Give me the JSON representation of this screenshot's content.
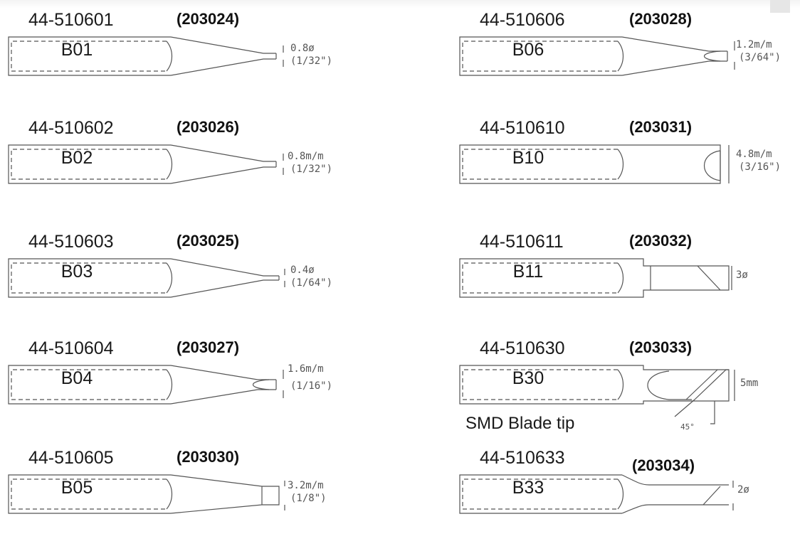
{
  "tips": [
    {
      "id": "b01",
      "part_number": "44-510601",
      "code": "(203024)",
      "model": "B01",
      "shape": "conical",
      "dim_top": "0.8ø",
      "dim_bottom": "(1/32\")"
    },
    {
      "id": "b02",
      "part_number": "44-510602",
      "code": "(203026)",
      "model": "B02",
      "shape": "conical",
      "dim_top": "0.8m/m",
      "dim_bottom": "(1/32\")"
    },
    {
      "id": "b03",
      "part_number": "44-510603",
      "code": "(203025)",
      "model": "B03",
      "shape": "conical-fine",
      "dim_top": "0.4ø",
      "dim_bottom": "(1/64\")"
    },
    {
      "id": "b04",
      "part_number": "44-510604",
      "code": "(203027)",
      "model": "B04",
      "shape": "rounded",
      "dim_top": "1.6m/m",
      "dim_bottom": "(1/16\")"
    },
    {
      "id": "b05",
      "part_number": "44-510605",
      "code": "(203030)",
      "model": "B05",
      "shape": "chisel",
      "dim_top": "3.2m/m",
      "dim_bottom": "(1/8\")"
    },
    {
      "id": "b06",
      "part_number": "44-510606",
      "code": "(203028)",
      "model": "B06",
      "shape": "rounded",
      "dim_top": "1.2m/m",
      "dim_bottom": "(3/64\")"
    },
    {
      "id": "b10",
      "part_number": "44-510610",
      "code": "(203031)",
      "model": "B10",
      "shape": "cup",
      "dim_top": "4.8m/m",
      "dim_bottom": "(3/16\")"
    },
    {
      "id": "b11",
      "part_number": "44-510611",
      "code": "(203032)",
      "model": "B11",
      "shape": "bevel",
      "dim_top": "3ø",
      "dim_bottom": ""
    },
    {
      "id": "b30",
      "part_number": "44-510630",
      "code": "(203033)",
      "model": "B30",
      "shape": "blade",
      "dim_top": "5mm",
      "dim_bottom": "",
      "note": "SMD Blade tip",
      "angle": "45°"
    },
    {
      "id": "b33",
      "part_number": "44-510633",
      "code": "(203034)",
      "model": "B33",
      "shape": "bevel-small",
      "dim_top": "2ø",
      "dim_bottom": ""
    }
  ]
}
